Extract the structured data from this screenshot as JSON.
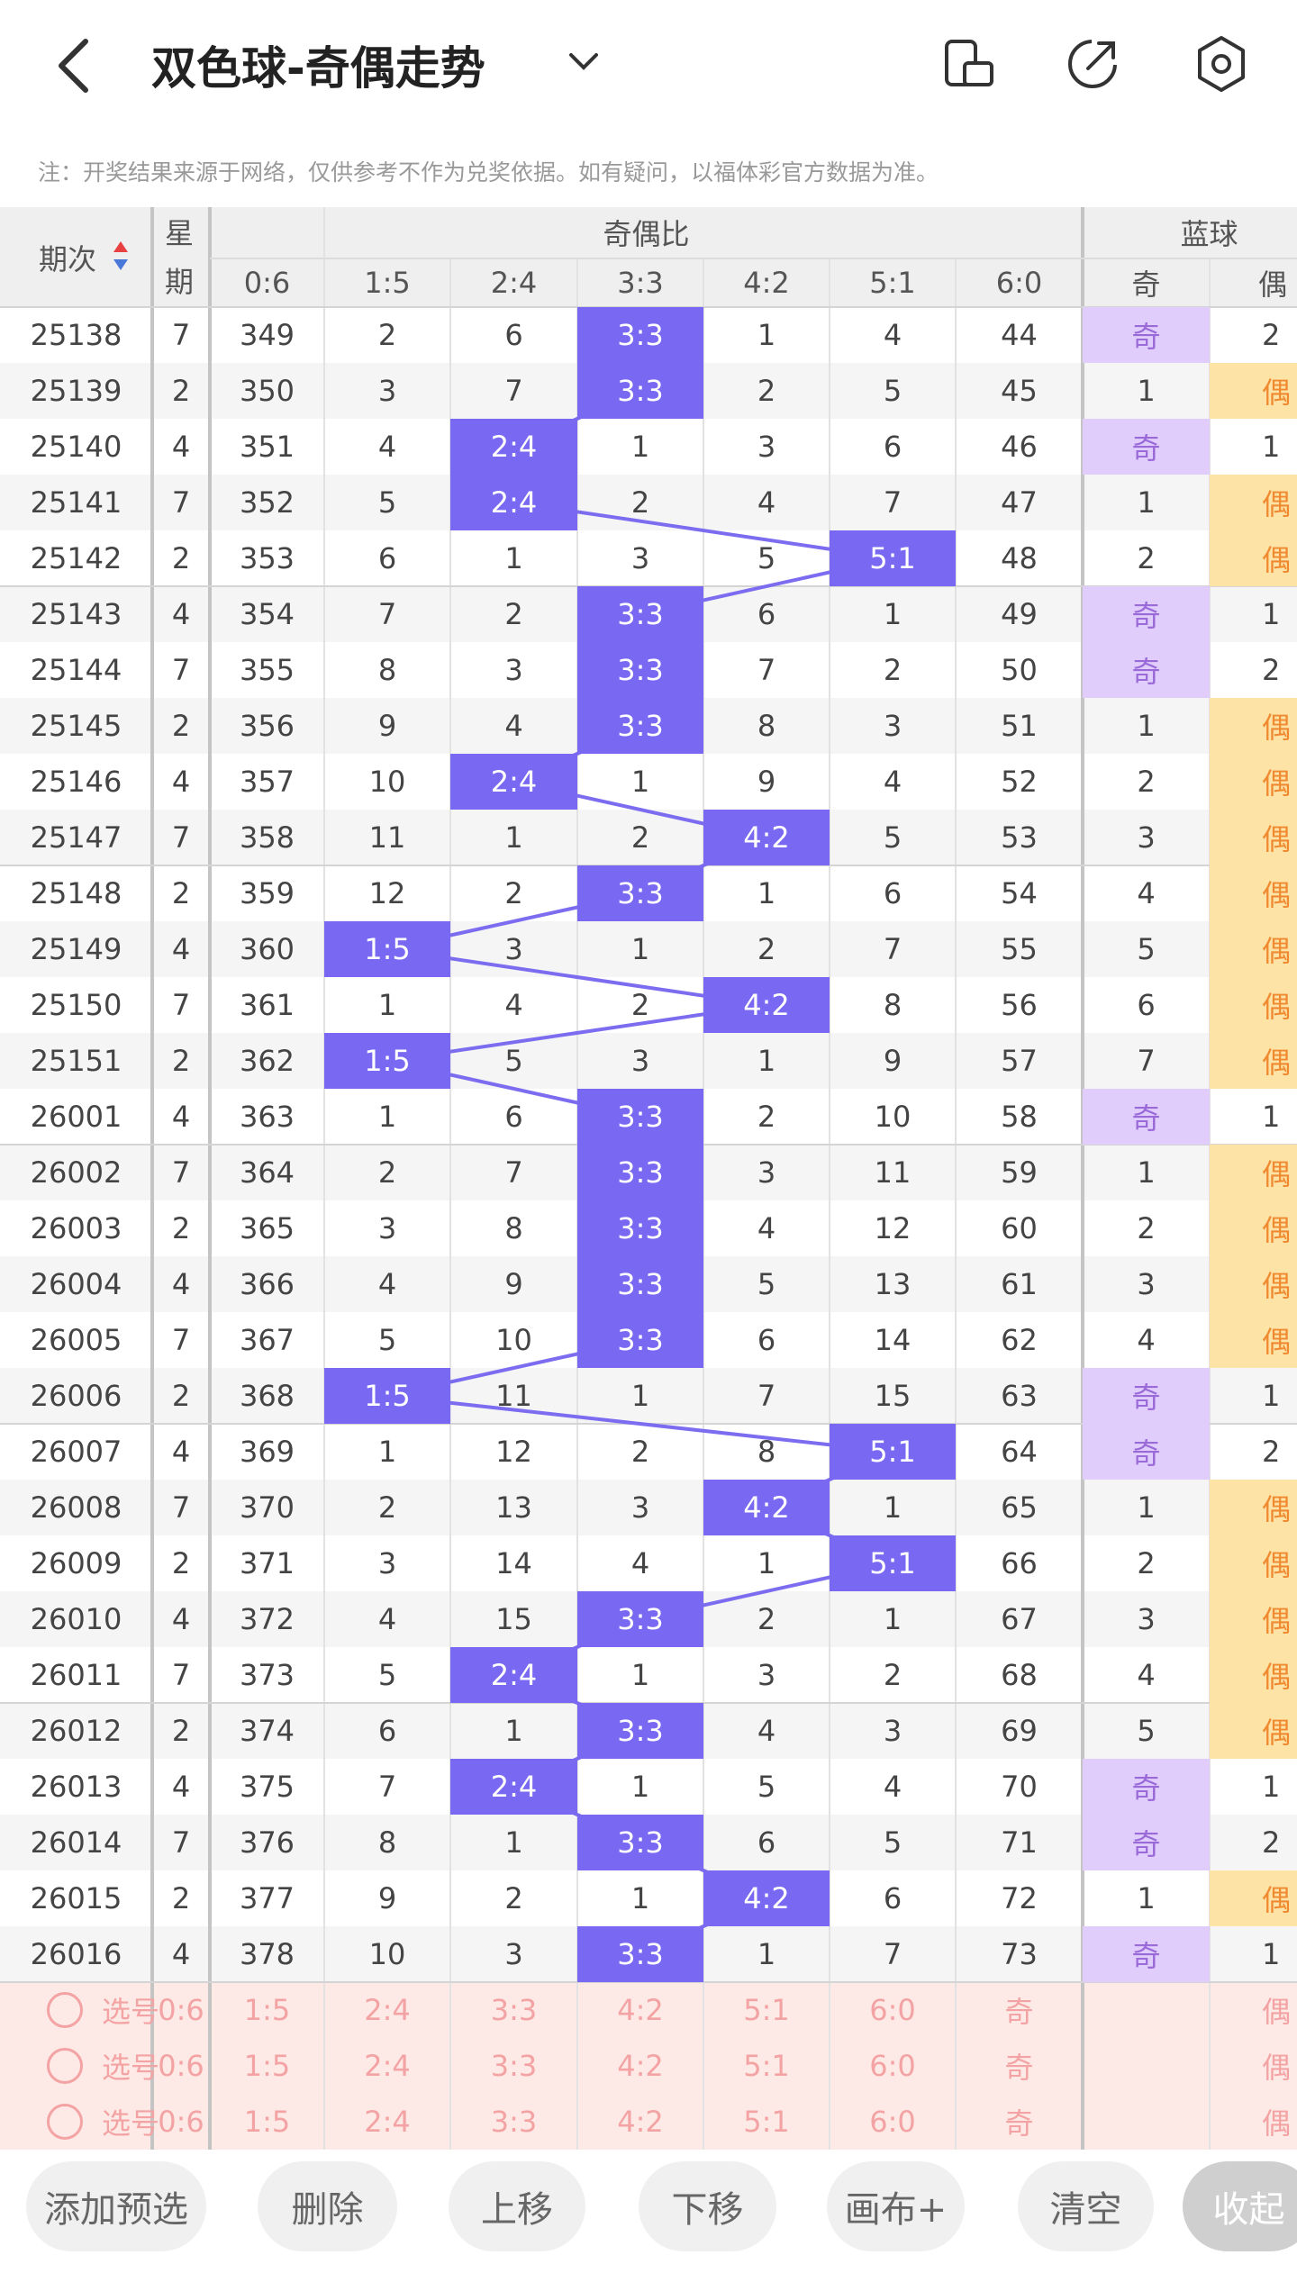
{
  "header": {
    "title": "双色球-奇偶走势"
  },
  "note": "注：开奖结果来源于网络，仅供参考不作为兑奖依据。如有疑问，以福体彩官方数据为准。",
  "table": {
    "head": {
      "period": "期次",
      "week": "星期",
      "ratio": "奇偶比",
      "blue": "蓝球",
      "ratios": [
        "0:6",
        "1:5",
        "2:4",
        "3:3",
        "4:2",
        "5:1",
        "6:0"
      ],
      "blue_cols": [
        "奇",
        "偶"
      ]
    },
    "rows": [
      [
        "25138",
        "7",
        "349",
        "2",
        "6",
        "3:3",
        "1",
        "4",
        "44",
        "奇",
        "2"
      ],
      [
        "25139",
        "2",
        "350",
        "3",
        "7",
        "3:3",
        "2",
        "5",
        "45",
        "1",
        "偶"
      ],
      [
        "25140",
        "4",
        "351",
        "4",
        "2:4",
        "1",
        "3",
        "6",
        "46",
        "奇",
        "1"
      ],
      [
        "25141",
        "7",
        "352",
        "5",
        "2:4",
        "2",
        "4",
        "7",
        "47",
        "1",
        "偶"
      ],
      [
        "25142",
        "2",
        "353",
        "6",
        "1",
        "3",
        "5",
        "5:1",
        "48",
        "2",
        "偶"
      ],
      [
        "25143",
        "4",
        "354",
        "7",
        "2",
        "3:3",
        "6",
        "1",
        "49",
        "奇",
        "1"
      ],
      [
        "25144",
        "7",
        "355",
        "8",
        "3",
        "3:3",
        "7",
        "2",
        "50",
        "奇",
        "2"
      ],
      [
        "25145",
        "2",
        "356",
        "9",
        "4",
        "3:3",
        "8",
        "3",
        "51",
        "1",
        "偶"
      ],
      [
        "25146",
        "4",
        "357",
        "10",
        "2:4",
        "1",
        "9",
        "4",
        "52",
        "2",
        "偶"
      ],
      [
        "25147",
        "7",
        "358",
        "11",
        "1",
        "2",
        "4:2",
        "5",
        "53",
        "3",
        "偶"
      ],
      [
        "25148",
        "2",
        "359",
        "12",
        "2",
        "3:3",
        "1",
        "6",
        "54",
        "4",
        "偶"
      ],
      [
        "25149",
        "4",
        "360",
        "1:5",
        "3",
        "1",
        "2",
        "7",
        "55",
        "5",
        "偶"
      ],
      [
        "25150",
        "7",
        "361",
        "1",
        "4",
        "2",
        "4:2",
        "8",
        "56",
        "6",
        "偶"
      ],
      [
        "25151",
        "2",
        "362",
        "1:5",
        "5",
        "3",
        "1",
        "9",
        "57",
        "7",
        "偶"
      ],
      [
        "26001",
        "4",
        "363",
        "1",
        "6",
        "3:3",
        "2",
        "10",
        "58",
        "奇",
        "1"
      ],
      [
        "26002",
        "7",
        "364",
        "2",
        "7",
        "3:3",
        "3",
        "11",
        "59",
        "1",
        "偶"
      ],
      [
        "26003",
        "2",
        "365",
        "3",
        "8",
        "3:3",
        "4",
        "12",
        "60",
        "2",
        "偶"
      ],
      [
        "26004",
        "4",
        "366",
        "4",
        "9",
        "3:3",
        "5",
        "13",
        "61",
        "3",
        "偶"
      ],
      [
        "26005",
        "7",
        "367",
        "5",
        "10",
        "3:3",
        "6",
        "14",
        "62",
        "4",
        "偶"
      ],
      [
        "26006",
        "2",
        "368",
        "1:5",
        "11",
        "1",
        "7",
        "15",
        "63",
        "奇",
        "1"
      ],
      [
        "26007",
        "4",
        "369",
        "1",
        "12",
        "2",
        "8",
        "5:1",
        "64",
        "奇",
        "2"
      ],
      [
        "26008",
        "7",
        "370",
        "2",
        "13",
        "3",
        "4:2",
        "1",
        "65",
        "1",
        "偶"
      ],
      [
        "26009",
        "2",
        "371",
        "3",
        "14",
        "4",
        "1",
        "5:1",
        "66",
        "2",
        "偶"
      ],
      [
        "26010",
        "4",
        "372",
        "4",
        "15",
        "3:3",
        "2",
        "1",
        "67",
        "3",
        "偶"
      ],
      [
        "26011",
        "7",
        "373",
        "5",
        "2:4",
        "1",
        "3",
        "2",
        "68",
        "4",
        "偶"
      ],
      [
        "26012",
        "2",
        "374",
        "6",
        "1",
        "3:3",
        "4",
        "3",
        "69",
        "5",
        "偶"
      ],
      [
        "26013",
        "4",
        "375",
        "7",
        "2:4",
        "1",
        "5",
        "4",
        "70",
        "奇",
        "1"
      ],
      [
        "26014",
        "7",
        "376",
        "8",
        "1",
        "3:3",
        "6",
        "5",
        "71",
        "奇",
        "2"
      ],
      [
        "26015",
        "2",
        "377",
        "9",
        "2",
        "1",
        "4:2",
        "6",
        "72",
        "1",
        "偶"
      ],
      [
        "26016",
        "4",
        "378",
        "10",
        "3",
        "3:3",
        "1",
        "7",
        "73",
        "奇",
        "1"
      ]
    ]
  },
  "picker": {
    "rows": [
      [
        "选号",
        "0:6",
        "1:5",
        "2:4",
        "3:3",
        "4:2",
        "5:1",
        "6:0",
        "奇",
        "偶"
      ],
      [
        "选号",
        "0:6",
        "1:5",
        "2:4",
        "3:3",
        "4:2",
        "5:1",
        "6:0",
        "奇",
        "偶"
      ],
      [
        "选号",
        "0:6",
        "1:5",
        "2:4",
        "3:3",
        "4:2",
        "5:1",
        "6:0",
        "奇",
        "偶"
      ]
    ]
  },
  "buttons": [
    "添加预选",
    "删除",
    "上移",
    "下移",
    "画布+",
    "清空",
    "收起"
  ]
}
